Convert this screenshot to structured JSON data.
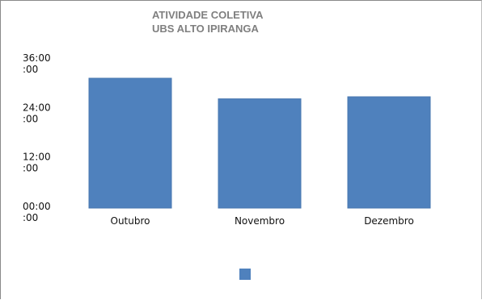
{
  "chart_data": {
    "type": "bar",
    "title": "ATIVIDADE COLETIVA",
    "subtitle": "UBS ALTO IPIRANGA",
    "categories": [
      "Outubro",
      "Novembro",
      "Dezembro"
    ],
    "series": [
      {
        "name": "",
        "values": [
          31.5,
          26.5,
          27.0
        ],
        "color": "#4f81bd"
      }
    ],
    "y_ticks": [
      {
        "value": 0,
        "label_line1": "00:00",
        "label_line2": ":00"
      },
      {
        "value": 12,
        "label_line1": "12:00",
        "label_line2": ":00"
      },
      {
        "value": 24,
        "label_line1": "24:00",
        "label_line2": ":00"
      },
      {
        "value": 36,
        "label_line1": "36:00",
        "label_line2": ":00"
      }
    ],
    "ylim": [
      0,
      36
    ],
    "grid": false,
    "legend": "bottom",
    "xlabel": "",
    "ylabel": ""
  }
}
